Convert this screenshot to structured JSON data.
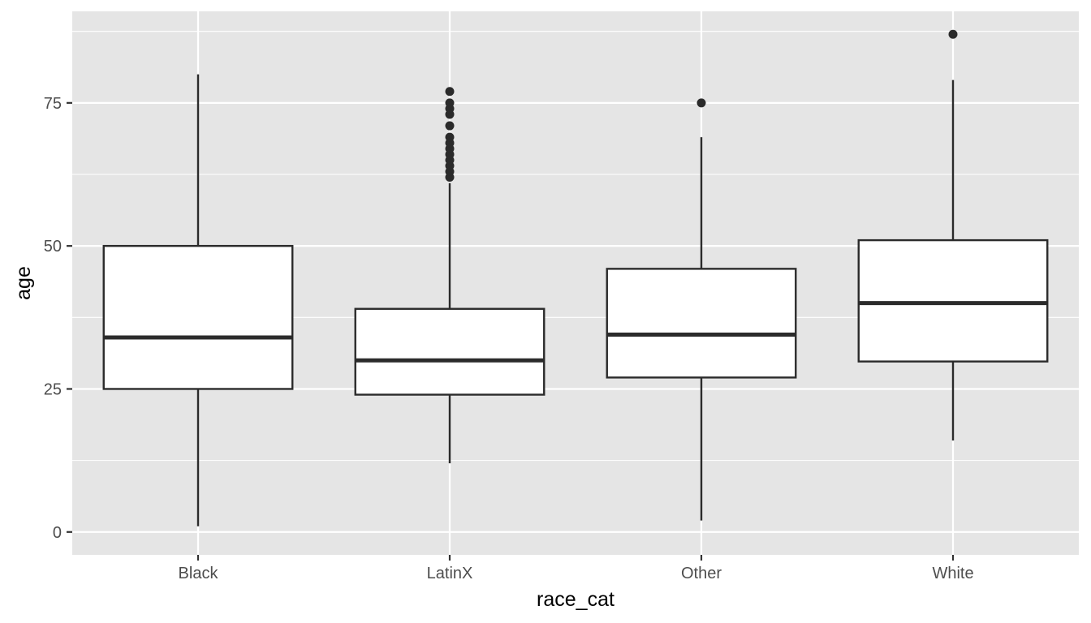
{
  "chart_data": {
    "type": "boxplot",
    "xlabel": "race_cat",
    "ylabel": "age",
    "ylim": [
      -4,
      91
    ],
    "yticks": [
      0,
      25,
      50,
      75
    ],
    "grid": true,
    "legend": "none",
    "colors": {
      "panel": "#e5e5e5",
      "grid": "#ffffff",
      "box_fill": "#ffffff",
      "box_line": "#2b2b2b",
      "outlier": "#2b2b2b"
    },
    "categories": [
      "Black",
      "LatinX",
      "Other",
      "White"
    ],
    "boxes": [
      {
        "category": "Black",
        "lower_whisker": 1,
        "q1": 25,
        "median": 34,
        "q3": 50,
        "upper_whisker": 80,
        "outliers": []
      },
      {
        "category": "LatinX",
        "lower_whisker": 12,
        "q1": 24,
        "median": 30,
        "q3": 39,
        "upper_whisker": 61,
        "outliers": [
          62,
          63,
          64,
          65,
          66,
          67,
          68,
          69,
          71,
          73,
          74,
          75,
          77
        ]
      },
      {
        "category": "Other",
        "lower_whisker": 2,
        "q1": 27,
        "median": 34.5,
        "q3": 46,
        "upper_whisker": 69,
        "outliers": [
          75
        ]
      },
      {
        "category": "White",
        "lower_whisker": 16,
        "q1": 29.8,
        "median": 40,
        "q3": 51,
        "upper_whisker": 79,
        "outliers": [
          87
        ]
      }
    ]
  }
}
